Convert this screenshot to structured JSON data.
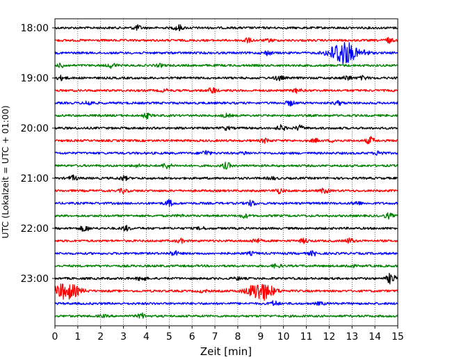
{
  "chart_data": {
    "type": "line",
    "title": "",
    "xlabel": "Zeit  [min]",
    "ylabel": "UTC (Lokalzeit = UTC + 01:00)",
    "xlim": [
      0,
      15
    ],
    "x_ticks": [
      "0",
      "1",
      "2",
      "3",
      "4",
      "5",
      "6",
      "7",
      "8",
      "9",
      "10",
      "11",
      "12",
      "13",
      "14",
      "15"
    ],
    "hour_labels": [
      "18:00",
      "19:00",
      "20:00",
      "21:00",
      "22:00",
      "23:00"
    ],
    "grid_x": true,
    "trace_colors": [
      "#000000",
      "#ff0000",
      "#0000ff",
      "#008000"
    ],
    "traces": [
      {
        "row": 0,
        "color": "#000000",
        "events": [
          [
            3.6,
            0.4
          ],
          [
            5.4,
            0.5
          ]
        ]
      },
      {
        "row": 1,
        "color": "#ff0000",
        "events": [
          [
            8.4,
            0.4
          ],
          [
            14.6,
            0.4
          ],
          [
            9.4,
            0.2
          ]
        ]
      },
      {
        "row": 2,
        "color": "#0000ff",
        "events": [
          [
            9.3,
            0.35
          ],
          [
            12.6,
            2.2
          ],
          [
            13.6,
            0.4
          ]
        ]
      },
      {
        "row": 3,
        "color": "#008000",
        "events": [
          [
            0.3,
            0.3
          ],
          [
            2.5,
            0.4
          ],
          [
            4.6,
            0.2
          ]
        ]
      },
      {
        "row": 4,
        "color": "#000000",
        "events": [
          [
            0.3,
            0.35
          ],
          [
            9.8,
            0.4
          ],
          [
            12.8,
            0.4
          ],
          [
            13.5,
            0.3
          ]
        ]
      },
      {
        "row": 5,
        "color": "#ff0000",
        "events": [
          [
            6.9,
            0.5
          ],
          [
            10.6,
            0.35
          ],
          [
            4.8,
            0.2
          ]
        ]
      },
      {
        "row": 6,
        "color": "#0000ff",
        "events": [
          [
            1.5,
            0.4
          ],
          [
            10.3,
            0.4
          ],
          [
            12.4,
            0.3
          ]
        ]
      },
      {
        "row": 7,
        "color": "#008000",
        "events": [
          [
            4.0,
            0.4
          ],
          [
            7.5,
            0.25
          ]
        ]
      },
      {
        "row": 8,
        "color": "#000000",
        "events": [
          [
            9.9,
            0.45
          ],
          [
            10.7,
            0.4
          ],
          [
            7.5,
            0.25
          ]
        ]
      },
      {
        "row": 9,
        "color": "#ff0000",
        "events": [
          [
            9.2,
            0.35
          ],
          [
            13.8,
            0.6
          ],
          [
            11.4,
            0.25
          ],
          [
            12.2,
            0.2
          ]
        ]
      },
      {
        "row": 10,
        "color": "#0000ff",
        "events": [
          [
            6.6,
            0.45
          ],
          [
            14.2,
            0.4
          ],
          [
            8.3,
            0.2
          ]
        ]
      },
      {
        "row": 11,
        "color": "#008000",
        "events": [
          [
            4.9,
            0.5
          ],
          [
            7.5,
            0.5
          ],
          [
            3.6,
            0.2
          ]
        ]
      },
      {
        "row": 12,
        "color": "#000000",
        "events": [
          [
            0.8,
            0.4
          ],
          [
            3.0,
            0.35
          ],
          [
            9.5,
            0.2
          ]
        ]
      },
      {
        "row": 13,
        "color": "#ff0000",
        "events": [
          [
            3.0,
            0.35
          ],
          [
            9.8,
            0.4
          ],
          [
            11.8,
            0.4
          ]
        ]
      },
      {
        "row": 14,
        "color": "#0000ff",
        "events": [
          [
            5.0,
            0.5
          ],
          [
            8.6,
            0.45
          ],
          [
            13.2,
            0.3
          ]
        ]
      },
      {
        "row": 15,
        "color": "#008000",
        "events": [
          [
            8.3,
            0.3
          ],
          [
            14.6,
            0.4
          ],
          [
            5.5,
            0.15
          ]
        ]
      },
      {
        "row": 16,
        "color": "#000000",
        "events": [
          [
            1.3,
            0.5
          ],
          [
            3.1,
            0.4
          ],
          [
            6.4,
            0.2
          ]
        ]
      },
      {
        "row": 17,
        "color": "#ff0000",
        "events": [
          [
            5.5,
            0.3
          ],
          [
            8.8,
            0.4
          ],
          [
            10.9,
            0.35
          ],
          [
            12.9,
            0.4
          ]
        ]
      },
      {
        "row": 18,
        "color": "#0000ff",
        "events": [
          [
            5.2,
            0.4
          ],
          [
            11.3,
            0.35
          ],
          [
            8.6,
            0.2
          ]
        ]
      },
      {
        "row": 19,
        "color": "#008000",
        "events": [
          [
            9.7,
            0.3
          ],
          [
            12.9,
            0.3
          ]
        ]
      },
      {
        "row": 20,
        "color": "#000000",
        "events": [
          [
            3.8,
            0.4
          ],
          [
            14.7,
            0.9
          ],
          [
            8.0,
            0.2
          ]
        ]
      },
      {
        "row": 21,
        "color": "#ff0000",
        "events": [
          [
            0.5,
            1.4
          ],
          [
            9.0,
            1.6
          ],
          [
            6.5,
            0.2
          ]
        ]
      },
      {
        "row": 22,
        "color": "#0000ff",
        "events": [
          [
            9.6,
            0.4
          ],
          [
            11.6,
            0.2
          ]
        ]
      },
      {
        "row": 23,
        "color": "#008000",
        "events": [
          [
            3.8,
            0.4
          ],
          [
            2.1,
            0.15
          ]
        ]
      }
    ]
  }
}
